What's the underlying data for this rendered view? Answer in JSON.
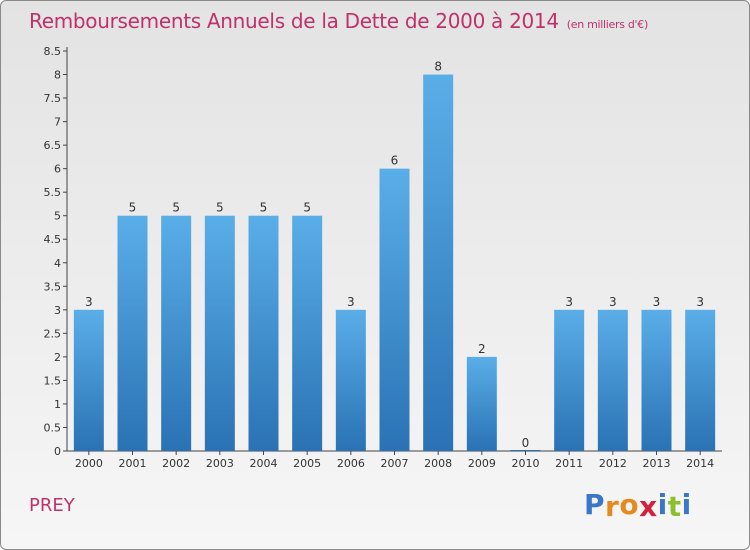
{
  "header": {
    "title": "Remboursements Annuels de la Dette de 2000 à 2014",
    "unit": "(en milliers d'€)"
  },
  "footer": {
    "commune": "PREY",
    "logo_letters": [
      "P",
      "r",
      "o",
      "x",
      "i",
      "t",
      "i"
    ],
    "logo_colors": [
      "#3a76c9",
      "#e58a1f",
      "#e58a1f",
      "#d2203d",
      "#3a76c9",
      "#8bbf2c",
      "#3a76c9"
    ]
  },
  "colors": {
    "bar_top": "#5aaee8",
    "bar_bottom": "#2a72b4",
    "title": "#c0306a",
    "axis": "#444444"
  },
  "chart_data": {
    "type": "bar",
    "title": "Remboursements Annuels de la Dette de 2000 à 2014",
    "categories": [
      "2000",
      "2001",
      "2002",
      "2003",
      "2004",
      "2005",
      "2006",
      "2007",
      "2008",
      "2009",
      "2010",
      "2011",
      "2012",
      "2013",
      "2014"
    ],
    "values": [
      3,
      5,
      5,
      5,
      5,
      5,
      3,
      6,
      8,
      2,
      0,
      3,
      3,
      3,
      3
    ],
    "data_labels": [
      "3",
      "5",
      "5",
      "5",
      "5",
      "5",
      "3",
      "6",
      "8",
      "2",
      "0",
      "3",
      "3",
      "3",
      "3"
    ],
    "yticks": [
      "0",
      "0.5",
      "1",
      "1.5",
      "2",
      "2.5",
      "3",
      "3.5",
      "4",
      "4.5",
      "5",
      "5.5",
      "6",
      "6.5",
      "7",
      "7.5",
      "8",
      "8.5"
    ],
    "ylim": [
      0,
      8.5
    ],
    "xlabel": "",
    "ylabel": "",
    "grid": false,
    "legend": "none"
  }
}
